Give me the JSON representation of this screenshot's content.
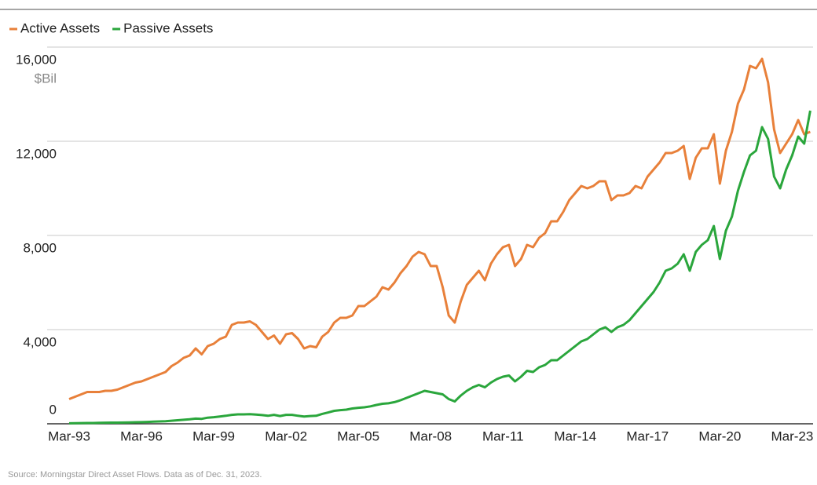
{
  "chart_data": {
    "type": "line",
    "y_unit": "$Bil",
    "source": "Source: Morningstar Direct Asset Flows. Data as of Dec. 31, 2023.",
    "categories": [
      "Mar-93",
      null,
      null,
      null,
      null,
      null,
      null,
      null,
      null,
      null,
      null,
      null,
      "Mar-96",
      null,
      null,
      null,
      null,
      null,
      null,
      null,
      null,
      null,
      null,
      null,
      "Mar-99",
      null,
      null,
      null,
      null,
      null,
      null,
      null,
      null,
      null,
      null,
      null,
      "Mar-02",
      null,
      null,
      null,
      null,
      null,
      null,
      null,
      null,
      null,
      null,
      null,
      "Mar-05",
      null,
      null,
      null,
      null,
      null,
      null,
      null,
      null,
      null,
      null,
      null,
      "Mar-08",
      null,
      null,
      null,
      null,
      null,
      null,
      null,
      null,
      null,
      null,
      null,
      "Mar-11",
      null,
      null,
      null,
      null,
      null,
      null,
      null,
      null,
      null,
      null,
      null,
      "Mar-14",
      null,
      null,
      null,
      null,
      null,
      null,
      null,
      null,
      null,
      null,
      null,
      "Mar-17",
      null,
      null,
      null,
      null,
      null,
      null,
      null,
      null,
      null,
      null,
      null,
      "Mar-20",
      null,
      null,
      null,
      null,
      null,
      null,
      null,
      null,
      null,
      null,
      null,
      "Mar-23",
      null,
      null,
      null
    ],
    "series": [
      {
        "name": "Active Assets",
        "color": "#e8803a",
        "values": [
          1050,
          1150,
          1250,
          1350,
          1350,
          1350,
          1400,
          1400,
          1450,
          1550,
          1650,
          1750,
          1800,
          1900,
          2000,
          2100,
          2200,
          2450,
          2600,
          2800,
          2900,
          3200,
          2950,
          3300,
          3400,
          3600,
          3700,
          4200,
          4300,
          4300,
          4350,
          4200,
          3900,
          3600,
          3750,
          3400,
          3800,
          3850,
          3600,
          3200,
          3300,
          3250,
          3700,
          3900,
          4300,
          4500,
          4500,
          4600,
          5000,
          5000,
          5200,
          5400,
          5800,
          5700,
          6000,
          6400,
          6700,
          7100,
          7300,
          7200,
          6700,
          6700,
          5800,
          4600,
          4300,
          5200,
          5900,
          6200,
          6500,
          6100,
          6800,
          7200,
          7500,
          7600,
          6700,
          7000,
          7600,
          7500,
          7900,
          8100,
          8600,
          8600,
          9000,
          9500,
          9800,
          10100,
          10000,
          10100,
          10300,
          10300,
          9500,
          9700,
          9700,
          9800,
          10100,
          10000,
          10500,
          10800,
          11100,
          11500,
          11500,
          11600,
          11800,
          10400,
          11300,
          11700,
          11700,
          12300,
          10200,
          11600,
          12400,
          13600,
          14200,
          15200,
          15100,
          15500,
          14500,
          12500,
          11500,
          11900,
          12300,
          12900,
          12300,
          12400
        ]
      },
      {
        "name": "Passive Assets",
        "color": "#2aa63c",
        "values": [
          20,
          25,
          30,
          35,
          35,
          40,
          45,
          50,
          50,
          55,
          60,
          65,
          70,
          80,
          90,
          100,
          110,
          130,
          150,
          170,
          190,
          220,
          210,
          260,
          280,
          310,
          340,
          380,
          400,
          400,
          410,
          390,
          370,
          340,
          380,
          330,
          380,
          380,
          340,
          310,
          330,
          340,
          420,
          480,
          550,
          580,
          600,
          650,
          680,
          700,
          740,
          800,
          850,
          870,
          920,
          1000,
          1100,
          1200,
          1300,
          1400,
          1350,
          1300,
          1250,
          1050,
          950,
          1200,
          1400,
          1550,
          1650,
          1550,
          1750,
          1900,
          2000,
          2050,
          1800,
          2000,
          2250,
          2200,
          2400,
          2500,
          2700,
          2700,
          2900,
          3100,
          3300,
          3500,
          3600,
          3800,
          4000,
          4100,
          3900,
          4100,
          4200,
          4400,
          4700,
          5000,
          5300,
          5600,
          6000,
          6500,
          6600,
          6800,
          7200,
          6500,
          7300,
          7600,
          7800,
          8400,
          7000,
          8200,
          8800,
          9900,
          10700,
          11400,
          11600,
          12600,
          12100,
          10500,
          10000,
          10800,
          11400,
          12200,
          11900,
          13300
        ]
      }
    ],
    "ylim": [
      0,
      16000
    ],
    "yticks": [
      0,
      {
        "value": 4000,
        "label": "4,000"
      },
      {
        "value": 8000,
        "label": "8,000"
      },
      {
        "value": 12000,
        "label": "12,000"
      },
      {
        "value": 16000,
        "label": "16,000"
      }
    ],
    "grid": true
  }
}
